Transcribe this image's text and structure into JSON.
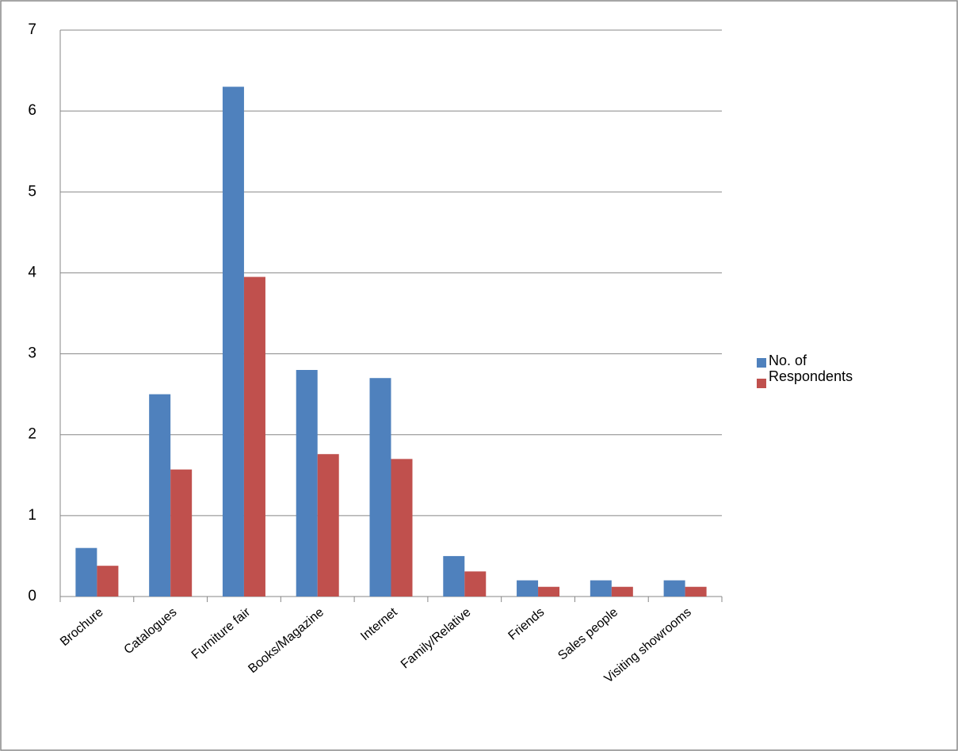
{
  "chart_data": {
    "type": "bar",
    "categories": [
      "Brochure",
      "Catalogues",
      "Furniture fair",
      "Books/Magazine",
      "Internet",
      "Family/Relative",
      "Friends",
      "Sales people",
      "Visiting showrooms"
    ],
    "series": [
      {
        "name": "No. of Respondents",
        "color": "#4f81bd",
        "values": [
          0.6,
          2.5,
          6.3,
          2.8,
          2.7,
          0.5,
          0.2,
          0.2,
          0.2
        ]
      },
      {
        "color": "#c0504d",
        "values": [
          0.38,
          1.57,
          3.95,
          1.76,
          1.7,
          0.31,
          0.12,
          0.12,
          0.12
        ]
      }
    ],
    "ylim": [
      0,
      7
    ],
    "yticks": [
      0,
      1,
      2,
      3,
      4,
      5,
      6,
      7
    ],
    "grid": true,
    "legend": "right"
  }
}
